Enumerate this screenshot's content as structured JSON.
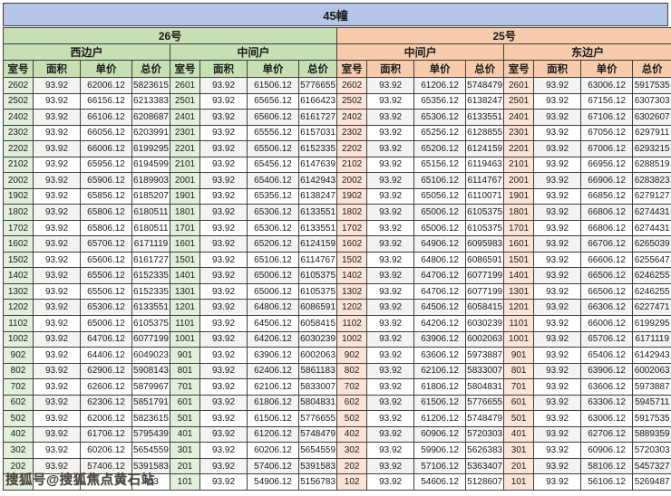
{
  "title": "45幢",
  "watermark": "搜狐号@搜狐焦点黄石站",
  "colors": {
    "title-bar": "#b4c6e7",
    "green": "#c6e0b4",
    "light-green": "#e2efda",
    "orange": "#f8cbad",
    "light-orange": "#fce4d6",
    "stripe": "#f3f3f1",
    "border": "#3f3f3f"
  },
  "buildings": [
    {
      "label": "26号",
      "units": [
        "西边户",
        "中间户"
      ]
    },
    {
      "label": "25号",
      "units": [
        "中间户",
        "东边户"
      ]
    }
  ],
  "column_headers": [
    "室号",
    "面积",
    "单价",
    "总价"
  ],
  "rows": [
    [
      [
        "2602",
        "93.92",
        "62006.12",
        "5823615"
      ],
      [
        "2601",
        "93.92",
        "61506.12",
        "5776655"
      ],
      [
        "2602",
        "93.92",
        "61206.12",
        "5748479"
      ],
      [
        "2601",
        "93.92",
        "63006.12",
        "5917535"
      ]
    ],
    [
      [
        "2502",
        "93.92",
        "66156.12",
        "6213383"
      ],
      [
        "2501",
        "93.92",
        "65656.12",
        "6166423"
      ],
      [
        "2502",
        "93.92",
        "65356.12",
        "6138247"
      ],
      [
        "2501",
        "93.92",
        "67156.12",
        "6307303"
      ]
    ],
    [
      [
        "2402",
        "93.92",
        "66106.12",
        "6208687"
      ],
      [
        "2401",
        "93.92",
        "65606.12",
        "6161727"
      ],
      [
        "2402",
        "93.92",
        "65306.12",
        "6133551"
      ],
      [
        "2401",
        "93.92",
        "67106.12",
        "6302607"
      ]
    ],
    [
      [
        "2302",
        "93.92",
        "66056.12",
        "6203991"
      ],
      [
        "2301",
        "93.92",
        "65556.12",
        "6157031"
      ],
      [
        "2302",
        "93.92",
        "65256.12",
        "6128855"
      ],
      [
        "2301",
        "93.92",
        "67056.12",
        "6297911"
      ]
    ],
    [
      [
        "2202",
        "93.92",
        "66006.12",
        "6199295"
      ],
      [
        "2201",
        "93.92",
        "65506.12",
        "6152335"
      ],
      [
        "2202",
        "93.92",
        "65206.12",
        "6124159"
      ],
      [
        "2201",
        "93.92",
        "67006.12",
        "6293215"
      ]
    ],
    [
      [
        "2102",
        "93.92",
        "65956.12",
        "6194599"
      ],
      [
        "2101",
        "93.92",
        "65456.12",
        "6147639"
      ],
      [
        "2102",
        "93.92",
        "65156.12",
        "6119463"
      ],
      [
        "2101",
        "93.92",
        "66956.12",
        "6288519"
      ]
    ],
    [
      [
        "2002",
        "93.92",
        "65906.12",
        "6189903"
      ],
      [
        "2001",
        "93.92",
        "65406.12",
        "6142943"
      ],
      [
        "2002",
        "93.92",
        "65106.12",
        "6114767"
      ],
      [
        "2001",
        "93.92",
        "66906.12",
        "6283823"
      ]
    ],
    [
      [
        "1902",
        "93.92",
        "65856.12",
        "6185207"
      ],
      [
        "1901",
        "93.92",
        "65356.12",
        "6138247"
      ],
      [
        "1902",
        "93.92",
        "65056.12",
        "6110071"
      ],
      [
        "1901",
        "93.92",
        "66856.12",
        "6279127"
      ]
    ],
    [
      [
        "1802",
        "93.92",
        "65806.12",
        "6180511"
      ],
      [
        "1801",
        "93.92",
        "65306.12",
        "6133551"
      ],
      [
        "1802",
        "93.92",
        "65006.12",
        "6105375"
      ],
      [
        "1801",
        "93.92",
        "66806.12",
        "6274431"
      ]
    ],
    [
      [
        "1702",
        "93.92",
        "65806.12",
        "6180511"
      ],
      [
        "1701",
        "93.92",
        "65306.12",
        "6133551"
      ],
      [
        "1702",
        "93.92",
        "65006.12",
        "6105375"
      ],
      [
        "1701",
        "93.92",
        "66806.12",
        "6274431"
      ]
    ],
    [
      [
        "1602",
        "93.92",
        "65706.12",
        "6171119"
      ],
      [
        "1601",
        "93.92",
        "65206.12",
        "6124159"
      ],
      [
        "1602",
        "93.92",
        "64906.12",
        "6095983"
      ],
      [
        "1601",
        "93.92",
        "66706.12",
        "6265039"
      ]
    ],
    [
      [
        "1502",
        "93.92",
        "65606.12",
        "6161727"
      ],
      [
        "1501",
        "93.92",
        "65106.12",
        "6114767"
      ],
      [
        "1502",
        "93.92",
        "64806.12",
        "6086591"
      ],
      [
        "1501",
        "93.92",
        "66606.12",
        "6255647"
      ]
    ],
    [
      [
        "1402",
        "93.92",
        "65506.12",
        "6152335"
      ],
      [
        "1401",
        "93.92",
        "65006.12",
        "6105375"
      ],
      [
        "1402",
        "93.92",
        "64706.12",
        "6077199"
      ],
      [
        "1401",
        "93.92",
        "66506.12",
        "6246255"
      ]
    ],
    [
      [
        "1302",
        "93.92",
        "65506.12",
        "6152335"
      ],
      [
        "1301",
        "93.92",
        "65006.12",
        "6105375"
      ],
      [
        "1302",
        "93.92",
        "64706.12",
        "6077199"
      ],
      [
        "1301",
        "93.92",
        "66506.12",
        "6246255"
      ]
    ],
    [
      [
        "1202",
        "93.92",
        "65306.12",
        "6133551"
      ],
      [
        "1201",
        "93.92",
        "64806.12",
        "6086591"
      ],
      [
        "1202",
        "93.92",
        "64506.12",
        "6058415"
      ],
      [
        "1201",
        "93.92",
        "66306.12",
        "6227471"
      ]
    ],
    [
      [
        "1102",
        "93.92",
        "65006.12",
        "6105375"
      ],
      [
        "1101",
        "93.92",
        "64506.12",
        "6058415"
      ],
      [
        "1102",
        "93.92",
        "64206.12",
        "6030239"
      ],
      [
        "1101",
        "93.92",
        "66006.12",
        "6199295"
      ]
    ],
    [
      [
        "1002",
        "93.92",
        "64706.12",
        "6077199"
      ],
      [
        "1001",
        "93.92",
        "64206.12",
        "6030239"
      ],
      [
        "1002",
        "93.92",
        "63906.12",
        "6002063"
      ],
      [
        "1001",
        "93.92",
        "65706.12",
        "6171119"
      ]
    ],
    [
      [
        "902",
        "93.92",
        "64406.12",
        "6049023"
      ],
      [
        "901",
        "93.92",
        "63906.12",
        "6002063"
      ],
      [
        "902",
        "93.92",
        "63606.12",
        "5973887"
      ],
      [
        "901",
        "93.92",
        "65406.12",
        "6142943"
      ]
    ],
    [
      [
        "802",
        "93.92",
        "62906.12",
        "5908143"
      ],
      [
        "801",
        "93.92",
        "62406.12",
        "5861183"
      ],
      [
        "802",
        "93.92",
        "62106.12",
        "5833007"
      ],
      [
        "801",
        "93.92",
        "63906.12",
        "6002063"
      ]
    ],
    [
      [
        "702",
        "93.92",
        "62606.12",
        "5879967"
      ],
      [
        "701",
        "93.92",
        "62106.12",
        "5833007"
      ],
      [
        "702",
        "93.92",
        "61806.12",
        "5804831"
      ],
      [
        "701",
        "93.92",
        "63606.12",
        "5973887"
      ]
    ],
    [
      [
        "602",
        "93.92",
        "62306.12",
        "5851791"
      ],
      [
        "601",
        "93.92",
        "61806.12",
        "5804831"
      ],
      [
        "602",
        "93.92",
        "61506.12",
        "5776655"
      ],
      [
        "601",
        "93.92",
        "63306.12",
        "5945711"
      ]
    ],
    [
      [
        "502",
        "93.92",
        "62006.12",
        "5823615"
      ],
      [
        "501",
        "93.92",
        "61506.12",
        "5776655"
      ],
      [
        "502",
        "93.92",
        "61206.12",
        "5748479"
      ],
      [
        "501",
        "93.92",
        "63006.12",
        "5917535"
      ]
    ],
    [
      [
        "402",
        "93.92",
        "61706.12",
        "5795439"
      ],
      [
        "401",
        "93.92",
        "61206.12",
        "5748479"
      ],
      [
        "402",
        "93.92",
        "60906.12",
        "5720303"
      ],
      [
        "401",
        "93.92",
        "62706.12",
        "5889359"
      ]
    ],
    [
      [
        "302",
        "93.92",
        "60206.12",
        "5654559"
      ],
      [
        "301",
        "93.92",
        "60206.12",
        "5654559"
      ],
      [
        "302",
        "93.92",
        "59906.12",
        "5626383"
      ],
      [
        "301",
        "93.92",
        "60906.12",
        "5720303"
      ]
    ],
    [
      [
        "202",
        "93.92",
        "57406.12",
        "5391583"
      ],
      [
        "201",
        "93.92",
        "57406.12",
        "5391583"
      ],
      [
        "202",
        "93.92",
        "57106.12",
        "5363407"
      ],
      [
        "201",
        "93.92",
        "58106.12",
        "5457327"
      ]
    ],
    [
      [
        "",
        "",
        "",
        "743"
      ],
      [
        "101",
        "93.92",
        "54906.12",
        "5156783"
      ],
      [
        "102",
        "93.92",
        "54606.12",
        "5128607"
      ],
      [
        "101",
        "93.92",
        "56106.12",
        "5269487"
      ]
    ]
  ]
}
